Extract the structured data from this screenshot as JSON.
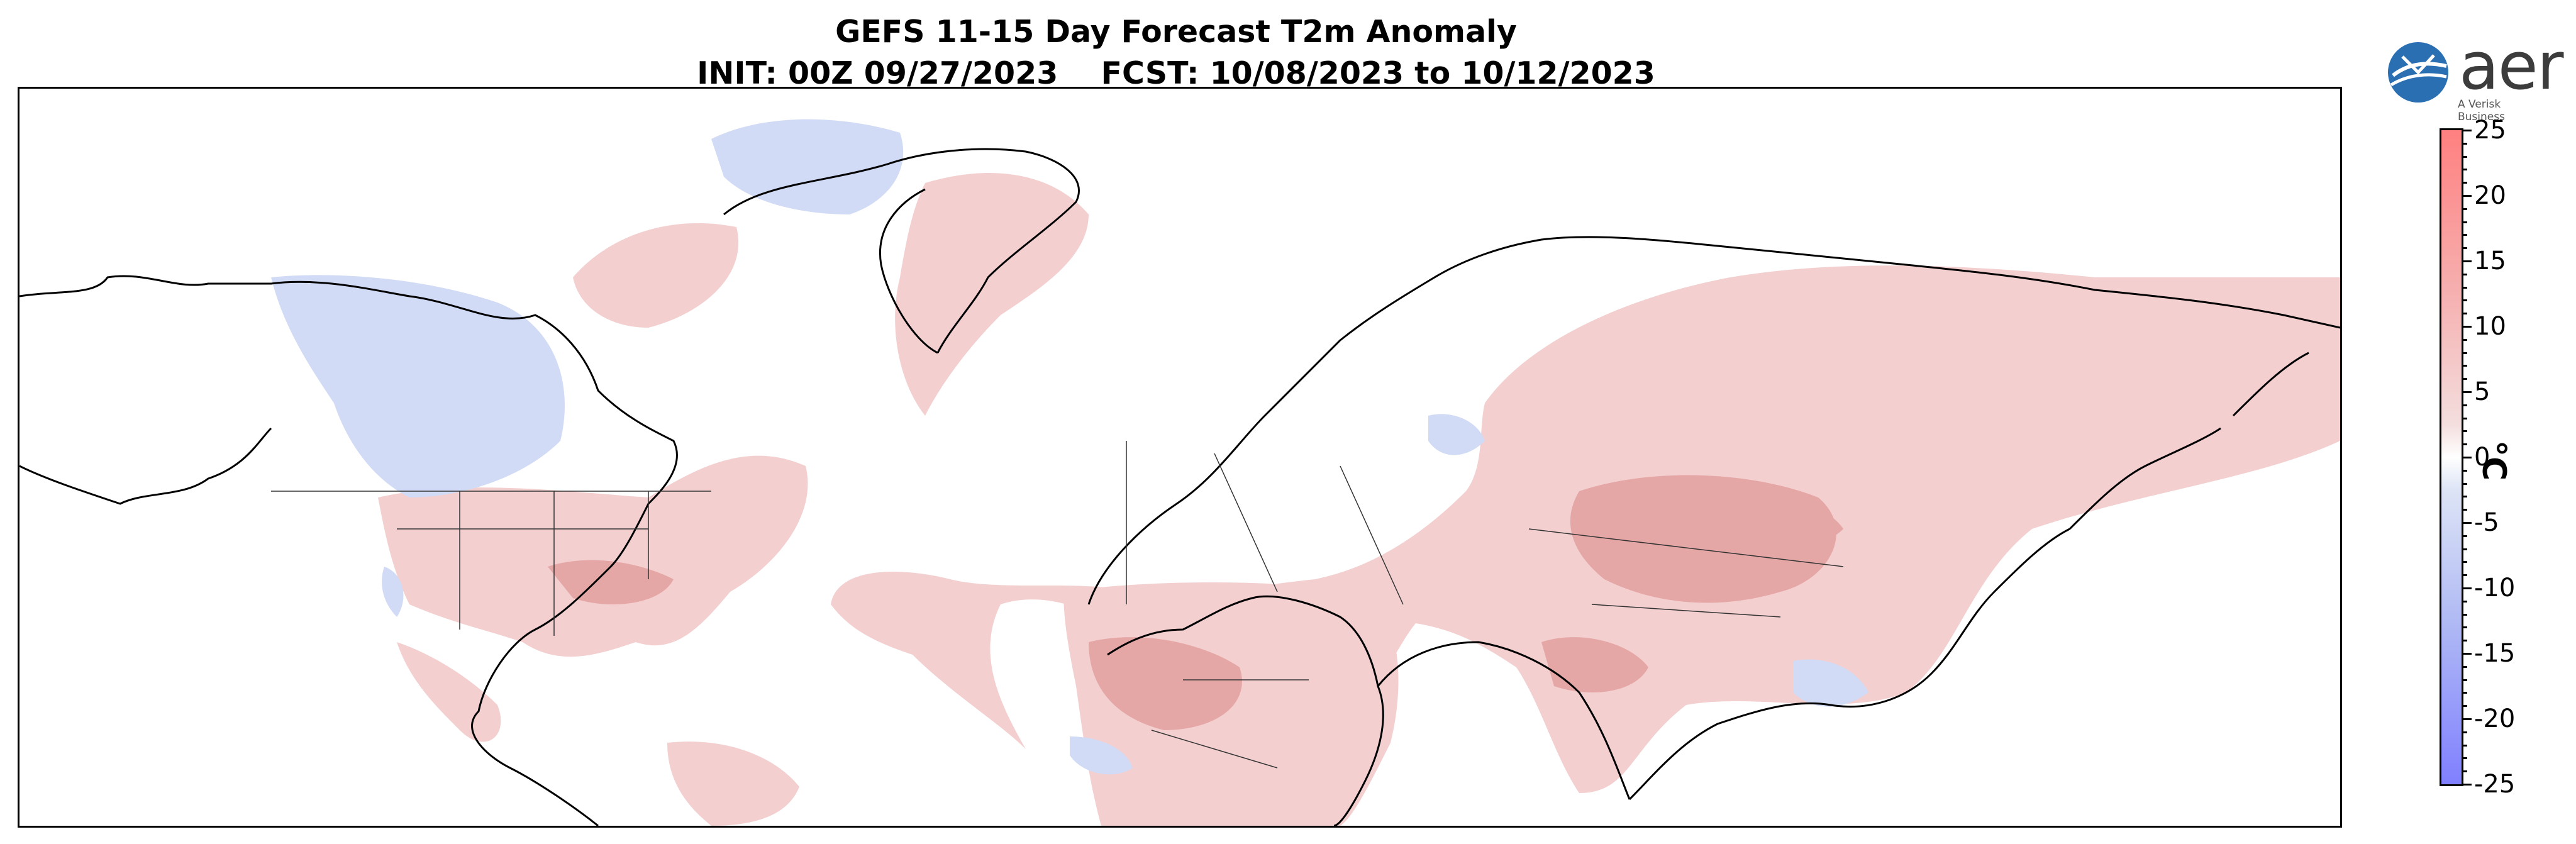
{
  "title": {
    "line1": "GEFS 11-15 Day Forecast T2m Anomaly",
    "line2": "INIT: 00Z 09/27/2023    FCST: 10/08/2023 to 10/12/2023"
  },
  "logo": {
    "brand": "aer",
    "tagline": "A Verisk Business"
  },
  "colorbar": {
    "unit": "°C",
    "min": -25,
    "max": 25,
    "tick_labels": [
      "25",
      "20",
      "15",
      "10",
      "5",
      "0",
      "-5",
      "-10",
      "-15",
      "-20",
      "-25"
    ],
    "colors": {
      "max": "#ff8080",
      "zero": "#ffffff",
      "min": "#8080ff"
    }
  },
  "map": {
    "field": "T2m anomaly",
    "colors": {
      "warm": "#e8a2a2",
      "warm_strong": "#cf6a6a",
      "cool": "#c9d6f4",
      "land_outline": "#000000"
    }
  }
}
